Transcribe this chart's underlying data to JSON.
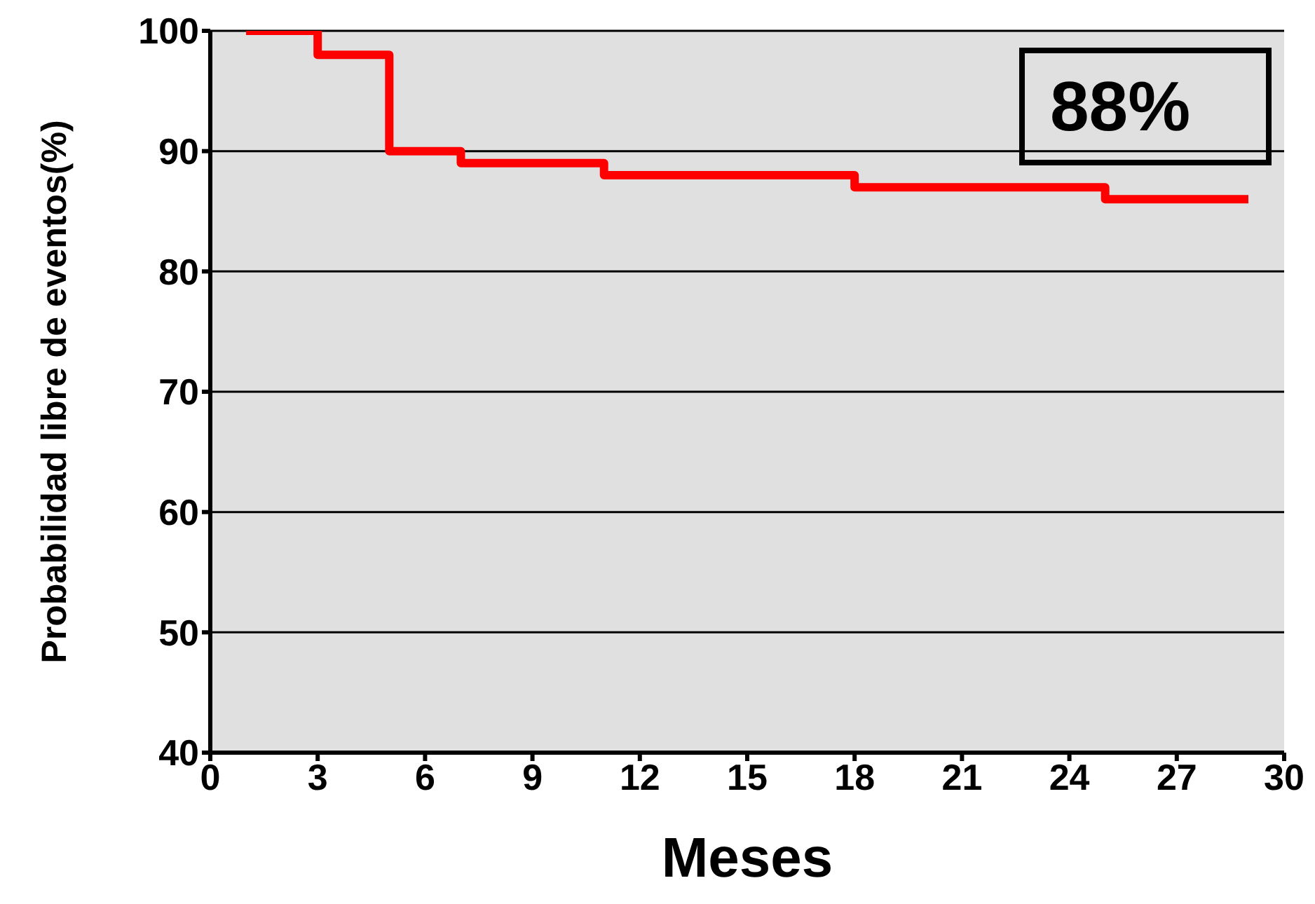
{
  "chart_data": {
    "type": "step",
    "xlabel": "Meses",
    "ylabel": "Probabilidad libre de eventos(%)",
    "x": [
      1,
      3,
      5,
      7,
      11,
      18,
      25,
      29
    ],
    "series": [
      {
        "color": "#ff0000",
        "values": [
          100,
          98,
          90,
          89,
          88,
          87,
          86,
          86
        ]
      }
    ],
    "xlim": [
      0,
      30
    ],
    "xticks": [
      0,
      3,
      6,
      9,
      12,
      15,
      18,
      21,
      24,
      27,
      30
    ],
    "ylim": [
      40,
      100
    ],
    "yticks": [
      40,
      50,
      60,
      70,
      80,
      90,
      100
    ],
    "grid": "y",
    "legend": false,
    "marker": "none",
    "line_style": "solid",
    "annotations": [
      "88%"
    ]
  }
}
